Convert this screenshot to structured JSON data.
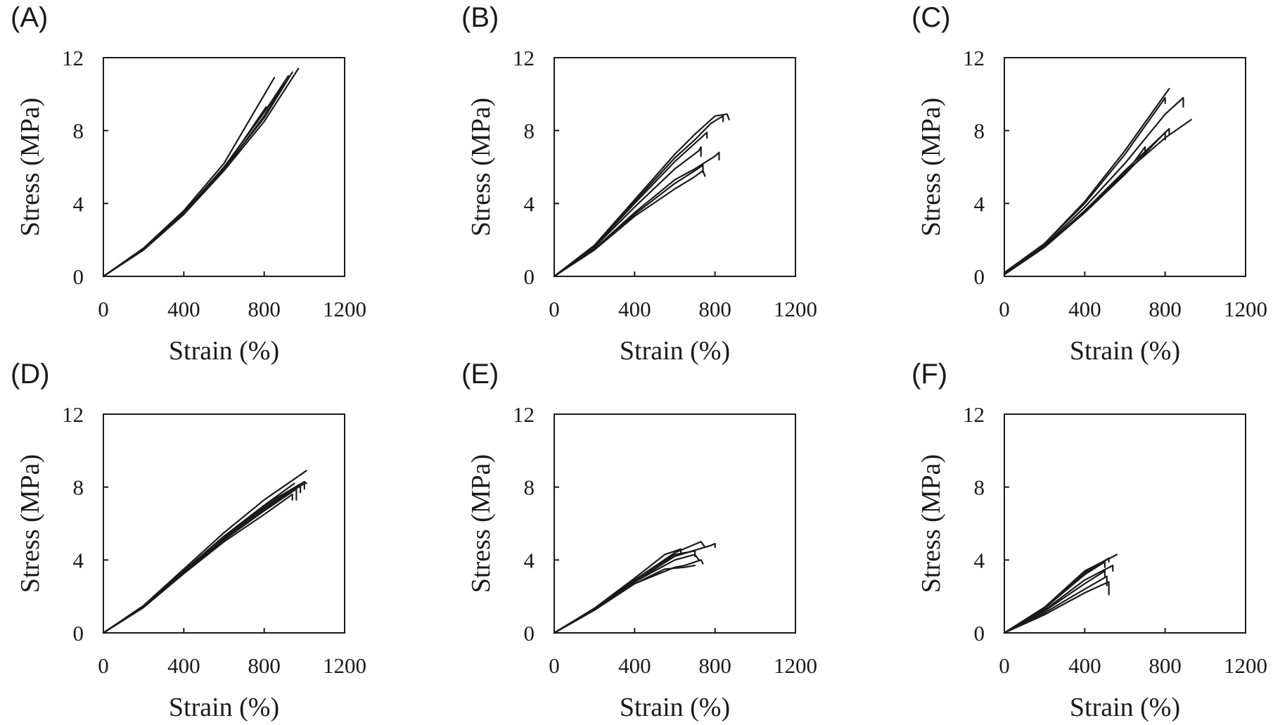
{
  "chart_data": [
    {
      "type": "line",
      "panel_label": "(A)",
      "xlabel": "Strain (%)",
      "ylabel": "Stress (MPa)",
      "xlim": [
        0,
        1200
      ],
      "ylim": [
        0,
        12
      ],
      "x_ticks": [
        "0",
        "400",
        "800",
        "1200"
      ],
      "y_ticks": [
        "0",
        "4",
        "8",
        "12"
      ],
      "grid": false,
      "series": [
        {
          "x": [
            0,
            200,
            400,
            600,
            850
          ],
          "y": [
            0,
            1.55,
            3.6,
            6.2,
            10.9
          ]
        },
        {
          "x": [
            0,
            200,
            400,
            600,
            800,
            920
          ],
          "y": [
            0,
            1.5,
            3.5,
            6.0,
            9.0,
            11.0
          ]
        },
        {
          "x": [
            0,
            200,
            400,
            600,
            800,
            940
          ],
          "y": [
            0,
            1.5,
            3.5,
            5.9,
            8.7,
            11.2
          ]
        },
        {
          "x": [
            0,
            200,
            400,
            600,
            800,
            970
          ],
          "y": [
            0,
            1.45,
            3.4,
            5.8,
            8.5,
            11.4
          ]
        },
        {
          "x": [
            0,
            200,
            400,
            600,
            810
          ],
          "y": [
            0,
            1.5,
            3.45,
            5.9,
            9.3
          ]
        },
        {
          "x": [
            0,
            200,
            400,
            600,
            800,
            900
          ],
          "y": [
            0,
            1.5,
            3.45,
            5.85,
            8.8,
            10.6
          ]
        }
      ]
    },
    {
      "type": "line",
      "panel_label": "(B)",
      "xlabel": "Strain (%)",
      "ylabel": "Stress (MPa)",
      "xlim": [
        0,
        1200
      ],
      "ylim": [
        0,
        12
      ],
      "x_ticks": [
        "0",
        "400",
        "800",
        "1200"
      ],
      "y_ticks": [
        "0",
        "4",
        "8",
        "12"
      ],
      "grid": false,
      "series": [
        {
          "x": [
            0,
            200,
            400,
            600,
            700,
            800,
            860,
            870
          ],
          "y": [
            0,
            1.7,
            4.2,
            6.7,
            7.8,
            8.8,
            8.9,
            8.6
          ]
        },
        {
          "x": [
            0,
            200,
            400,
            600,
            700,
            780,
            840,
            840
          ],
          "y": [
            0,
            1.7,
            4.1,
            6.5,
            7.5,
            8.4,
            8.8,
            8.5
          ]
        },
        {
          "x": [
            0,
            200,
            400,
            600,
            700,
            760,
            760
          ],
          "y": [
            0,
            1.65,
            4.0,
            6.3,
            7.3,
            7.9,
            7.6
          ]
        },
        {
          "x": [
            0,
            200,
            400,
            600,
            720,
            730,
            730
          ],
          "y": [
            0,
            1.6,
            3.8,
            5.9,
            6.9,
            7.1,
            6.6
          ]
        },
        {
          "x": [
            0,
            200,
            400,
            600,
            700,
            800,
            820,
            820
          ],
          "y": [
            0,
            1.5,
            3.5,
            5.3,
            5.9,
            6.6,
            6.8,
            6.4
          ]
        },
        {
          "x": [
            0,
            200,
            400,
            600,
            700,
            740,
            740
          ],
          "y": [
            0,
            1.5,
            3.4,
            5.1,
            5.8,
            6.1,
            5.7
          ]
        },
        {
          "x": [
            0,
            200,
            400,
            600,
            690,
            740,
            750
          ],
          "y": [
            0,
            1.45,
            3.3,
            4.8,
            5.4,
            5.8,
            5.5
          ]
        }
      ]
    },
    {
      "type": "line",
      "panel_label": "(C)",
      "xlabel": "Strain (%)",
      "ylabel": "Stress (MPa)",
      "xlim": [
        0,
        1200
      ],
      "ylim": [
        0,
        12
      ],
      "x_ticks": [
        "0",
        "400",
        "800",
        "1200"
      ],
      "y_ticks": [
        "0",
        "4",
        "8",
        "12"
      ],
      "grid": false,
      "series": [
        {
          "x": [
            0,
            200,
            400,
            600,
            820
          ],
          "y": [
            0.2,
            1.8,
            4.1,
            6.9,
            10.3
          ]
        },
        {
          "x": [
            0,
            200,
            400,
            600,
            800,
            800
          ],
          "y": [
            0.2,
            1.8,
            4.0,
            6.7,
            9.8,
            9.5
          ]
        },
        {
          "x": [
            0,
            200,
            400,
            600,
            800,
            890,
            890
          ],
          "y": [
            0.1,
            1.7,
            3.8,
            6.2,
            8.9,
            9.8,
            9.3
          ]
        },
        {
          "x": [
            0,
            200,
            400,
            600,
            800,
            930
          ],
          "y": [
            0.1,
            1.6,
            3.6,
            5.7,
            7.6,
            8.6
          ]
        },
        {
          "x": [
            0,
            200,
            400,
            600,
            820,
            820
          ],
          "y": [
            0.1,
            1.65,
            3.6,
            5.8,
            8.1,
            7.8
          ]
        },
        {
          "x": [
            0,
            200,
            400,
            600,
            800,
            800
          ],
          "y": [
            0.1,
            1.6,
            3.5,
            5.6,
            7.9,
            7.5
          ]
        },
        {
          "x": [
            0,
            200,
            400,
            600,
            700,
            700
          ],
          "y": [
            0.1,
            1.6,
            3.5,
            5.6,
            7.1,
            6.8
          ]
        }
      ]
    },
    {
      "type": "line",
      "panel_label": "(D)",
      "xlabel": "Strain (%)",
      "ylabel": "Stress (MPa)",
      "xlim": [
        0,
        1200
      ],
      "ylim": [
        0,
        12
      ],
      "x_ticks": [
        "0",
        "400",
        "800",
        "1200"
      ],
      "y_ticks": [
        "0",
        "4",
        "8",
        "12"
      ],
      "grid": false,
      "series": [
        {
          "x": [
            0,
            200,
            400,
            600,
            800,
            1010
          ],
          "y": [
            0,
            1.5,
            3.5,
            5.5,
            7.3,
            8.9
          ]
        },
        {
          "x": [
            0,
            200,
            400,
            600,
            800,
            1000,
            1010
          ],
          "y": [
            0,
            1.45,
            3.4,
            5.3,
            7.0,
            8.3,
            8.2
          ]
        },
        {
          "x": [
            0,
            200,
            400,
            600,
            800,
            980,
            980
          ],
          "y": [
            0,
            1.45,
            3.35,
            5.2,
            6.9,
            8.1,
            7.7
          ]
        },
        {
          "x": [
            0,
            200,
            400,
            600,
            800,
            960,
            960
          ],
          "y": [
            0,
            1.4,
            3.3,
            5.1,
            6.7,
            7.9,
            7.3
          ]
        },
        {
          "x": [
            0,
            200,
            400,
            600,
            800,
            940,
            940
          ],
          "y": [
            0,
            1.4,
            3.25,
            5.0,
            6.5,
            7.6,
            7.3
          ]
        },
        {
          "x": [
            0,
            200,
            400,
            600,
            800,
            1000,
            1000
          ],
          "y": [
            0,
            1.45,
            3.3,
            5.1,
            6.8,
            8.2,
            7.9
          ]
        },
        {
          "x": [
            0,
            200,
            400,
            600,
            800,
            950
          ],
          "y": [
            0,
            1.45,
            3.4,
            5.3,
            7.0,
            8.2
          ]
        }
      ]
    },
    {
      "type": "line",
      "panel_label": "(E)",
      "xlabel": "Strain (%)",
      "ylabel": "Stress (MPa)",
      "xlim": [
        0,
        1200
      ],
      "ylim": [
        0,
        12
      ],
      "x_ticks": [
        "0",
        "400",
        "800",
        "1200"
      ],
      "y_ticks": [
        "0",
        "4",
        "8",
        "12"
      ],
      "grid": false,
      "series": [
        {
          "x": [
            0,
            200,
            400,
            600,
            730,
            750
          ],
          "y": [
            0,
            1.3,
            2.9,
            4.4,
            5.0,
            4.7
          ]
        },
        {
          "x": [
            0,
            200,
            400,
            600,
            780,
            800,
            800
          ],
          "y": [
            0,
            1.25,
            2.8,
            4.2,
            4.8,
            4.9,
            4.7
          ]
        },
        {
          "x": [
            0,
            200,
            400,
            600,
            700,
            700
          ],
          "y": [
            0,
            1.3,
            2.9,
            4.3,
            4.5,
            4.2
          ]
        },
        {
          "x": [
            0,
            200,
            400,
            550,
            630,
            630
          ],
          "y": [
            0,
            1.35,
            3.0,
            4.3,
            4.6,
            4.3
          ]
        },
        {
          "x": [
            0,
            200,
            400,
            600,
            700,
            720
          ],
          "y": [
            0,
            1.3,
            2.8,
            4.0,
            4.3,
            4.0
          ]
        },
        {
          "x": [
            0,
            200,
            400,
            600,
            650,
            730,
            740
          ],
          "y": [
            0,
            1.25,
            2.7,
            3.6,
            3.7,
            4.0,
            3.8
          ]
        },
        {
          "x": [
            0,
            200,
            400,
            550,
            650,
            700
          ],
          "y": [
            0,
            1.25,
            2.7,
            3.5,
            3.6,
            3.7
          ]
        }
      ]
    },
    {
      "type": "line",
      "panel_label": "(F)",
      "xlabel": "Strain (%)",
      "ylabel": "Stress (MPa)",
      "xlim": [
        0,
        1200
      ],
      "ylim": [
        0,
        12
      ],
      "x_ticks": [
        "0",
        "400",
        "800",
        "1200"
      ],
      "y_ticks": [
        "0",
        "4",
        "8",
        "12"
      ],
      "grid": false,
      "series": [
        {
          "x": [
            0,
            200,
            400,
            560
          ],
          "y": [
            0,
            1.4,
            3.4,
            4.3
          ]
        },
        {
          "x": [
            0,
            200,
            400,
            520,
            520
          ],
          "y": [
            0,
            1.4,
            3.3,
            4.1,
            3.9
          ]
        },
        {
          "x": [
            0,
            200,
            400,
            500,
            500
          ],
          "y": [
            0,
            1.35,
            3.2,
            3.9,
            3.6
          ]
        },
        {
          "x": [
            0,
            200,
            400,
            540,
            540
          ],
          "y": [
            0,
            1.25,
            2.9,
            3.7,
            3.4
          ]
        },
        {
          "x": [
            0,
            200,
            400,
            500,
            500
          ],
          "y": [
            0,
            1.2,
            2.7,
            3.4,
            3.1
          ]
        },
        {
          "x": [
            0,
            200,
            400,
            510,
            510
          ],
          "y": [
            0,
            1.1,
            2.4,
            3.1,
            2.6
          ]
        },
        {
          "x": [
            0,
            200,
            400,
            520,
            520
          ],
          "y": [
            0,
            1.0,
            2.2,
            2.8,
            2.1
          ]
        }
      ]
    }
  ]
}
